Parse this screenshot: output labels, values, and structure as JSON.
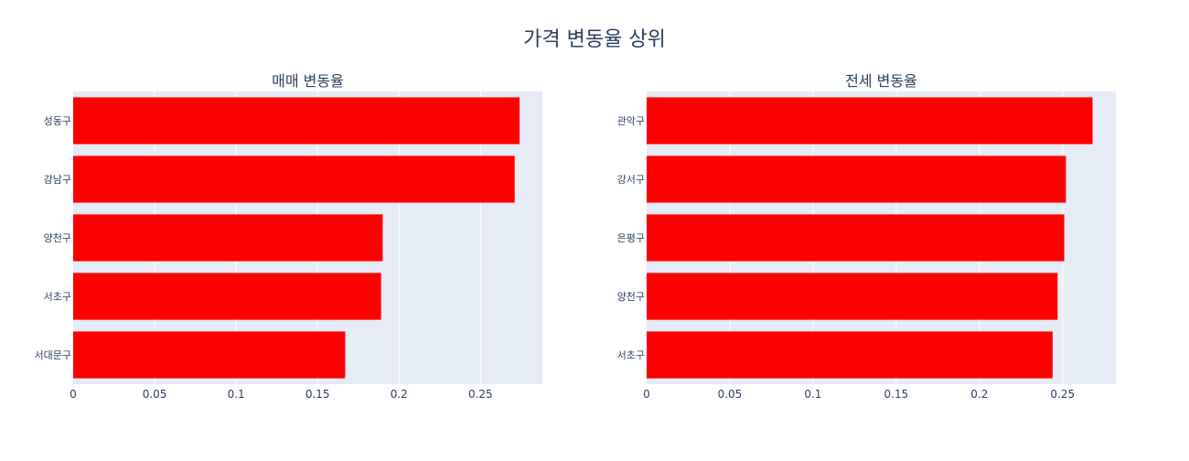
{
  "title": "가격 변동율 상위",
  "colors": {
    "bar": "#ff0000",
    "plot_bg": "#e5ecf6",
    "grid": "#ffffff",
    "text": "#2a3f5f",
    "page_bg": "#ffffff"
  },
  "chart_data": [
    {
      "type": "bar",
      "orientation": "horizontal",
      "title": "매매 변동율",
      "categories": [
        "성동구",
        "강남구",
        "양천구",
        "서초구",
        "서대문구"
      ],
      "values": [
        0.274,
        0.271,
        0.19,
        0.189,
        0.167
      ],
      "xlim": [
        0,
        0.288
      ],
      "xticks": [
        0,
        0.05,
        0.1,
        0.15,
        0.2,
        0.25
      ],
      "xtick_labels": [
        "0",
        "0.05",
        "0.1",
        "0.15",
        "0.2",
        "0.25"
      ],
      "grid": true
    },
    {
      "type": "bar",
      "orientation": "horizontal",
      "title": "전세 변동율",
      "categories": [
        "관악구",
        "강서구",
        "은평구",
        "양천구",
        "서초구"
      ],
      "values": [
        0.268,
        0.252,
        0.251,
        0.247,
        0.244
      ],
      "xlim": [
        0,
        0.282
      ],
      "xticks": [
        0,
        0.05,
        0.1,
        0.15,
        0.2,
        0.25
      ],
      "xtick_labels": [
        "0",
        "0.05",
        "0.1",
        "0.15",
        "0.2",
        "0.25"
      ],
      "grid": true
    }
  ]
}
